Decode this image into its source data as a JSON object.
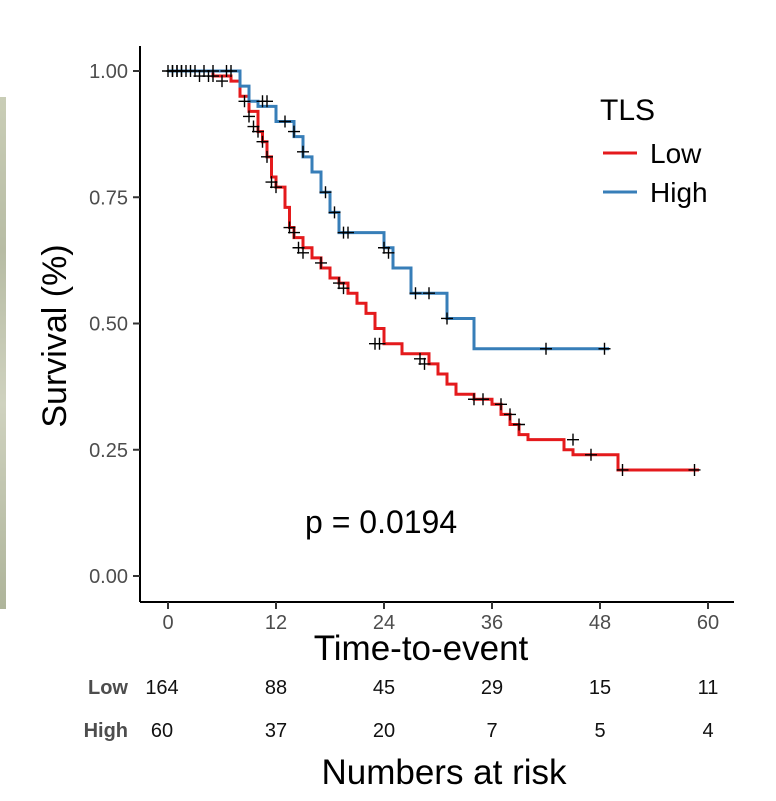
{
  "chart_data": {
    "type": "line",
    "subtype": "kaplan-meier",
    "ylabel": "Survival (%)",
    "xlabel": "Time-to-event",
    "x_ticks": [
      0,
      12,
      24,
      36,
      48,
      60
    ],
    "y_ticks": [
      "0.00",
      "0.25",
      "0.50",
      "0.75",
      "1.00"
    ],
    "y_tick_values": [
      0,
      0.25,
      0.5,
      0.75,
      1.0
    ],
    "xlim": [
      -1,
      62
    ],
    "ylim": [
      -0.05,
      1.05
    ],
    "legend": {
      "title": "TLS",
      "position": "top-right"
    },
    "annotation": "p = 0.0194",
    "series": [
      {
        "name": "Low",
        "color": "#e41a1c",
        "steps": [
          [
            0,
            1.0
          ],
          [
            5,
            0.99
          ],
          [
            7,
            0.98
          ],
          [
            8,
            0.95
          ],
          [
            9,
            0.92
          ],
          [
            10,
            0.88
          ],
          [
            10.5,
            0.86
          ],
          [
            11,
            0.83
          ],
          [
            11.5,
            0.79
          ],
          [
            12,
            0.77
          ],
          [
            13,
            0.73
          ],
          [
            13.5,
            0.69
          ],
          [
            14,
            0.67
          ],
          [
            15,
            0.65
          ],
          [
            16,
            0.63
          ],
          [
            17,
            0.61
          ],
          [
            18,
            0.59
          ],
          [
            19,
            0.58
          ],
          [
            20,
            0.56
          ],
          [
            21,
            0.54
          ],
          [
            22,
            0.52
          ],
          [
            23,
            0.49
          ],
          [
            24,
            0.46
          ],
          [
            26,
            0.44
          ],
          [
            29,
            0.42
          ],
          [
            30,
            0.4
          ],
          [
            31,
            0.38
          ],
          [
            32,
            0.36
          ],
          [
            34,
            0.35
          ],
          [
            36,
            0.34
          ],
          [
            37,
            0.32
          ],
          [
            38,
            0.3
          ],
          [
            39,
            0.28
          ],
          [
            40,
            0.27
          ],
          [
            44,
            0.25
          ],
          [
            45,
            0.24
          ],
          [
            50,
            0.21
          ],
          [
            59,
            0.21
          ]
        ],
        "censors": [
          [
            0,
            1.0
          ],
          [
            0.5,
            1.0
          ],
          [
            1,
            1.0
          ],
          [
            1.5,
            1.0
          ],
          [
            3,
            1.0
          ],
          [
            3.5,
            0.99
          ],
          [
            4.5,
            0.99
          ],
          [
            5,
            0.99
          ],
          [
            6,
            0.98
          ],
          [
            8.5,
            0.94
          ],
          [
            9,
            0.91
          ],
          [
            9.5,
            0.89
          ],
          [
            10,
            0.88
          ],
          [
            10.5,
            0.86
          ],
          [
            11,
            0.83
          ],
          [
            11.5,
            0.78
          ],
          [
            12,
            0.77
          ],
          [
            13.5,
            0.69
          ],
          [
            14,
            0.68
          ],
          [
            14.5,
            0.65
          ],
          [
            15,
            0.64
          ],
          [
            17,
            0.62
          ],
          [
            19,
            0.58
          ],
          [
            19.5,
            0.57
          ],
          [
            23,
            0.46
          ],
          [
            23.5,
            0.46
          ],
          [
            28,
            0.43
          ],
          [
            28.5,
            0.42
          ],
          [
            34,
            0.35
          ],
          [
            35,
            0.35
          ],
          [
            37,
            0.34
          ],
          [
            38,
            0.32
          ],
          [
            39,
            0.3
          ],
          [
            45,
            0.27
          ],
          [
            47,
            0.24
          ],
          [
            50.5,
            0.21
          ],
          [
            58.5,
            0.21
          ]
        ]
      },
      {
        "name": "High",
        "color": "#377eb8",
        "steps": [
          [
            0,
            1.0
          ],
          [
            8,
            0.97
          ],
          [
            9,
            0.94
          ],
          [
            10,
            0.93
          ],
          [
            12,
            0.9
          ],
          [
            14,
            0.87
          ],
          [
            15,
            0.83
          ],
          [
            16,
            0.8
          ],
          [
            17,
            0.76
          ],
          [
            18,
            0.72
          ],
          [
            19,
            0.68
          ],
          [
            24,
            0.65
          ],
          [
            25,
            0.61
          ],
          [
            27,
            0.56
          ],
          [
            31,
            0.51
          ],
          [
            34,
            0.45
          ],
          [
            49,
            0.45
          ]
        ],
        "censors": [
          [
            0.5,
            1.0
          ],
          [
            1,
            1.0
          ],
          [
            1.5,
            1.0
          ],
          [
            2,
            1.0
          ],
          [
            2.5,
            1.0
          ],
          [
            4,
            1.0
          ],
          [
            5,
            1.0
          ],
          [
            6.5,
            1.0
          ],
          [
            7,
            1.0
          ],
          [
            10.5,
            0.94
          ],
          [
            11,
            0.94
          ],
          [
            13,
            0.9
          ],
          [
            14,
            0.88
          ],
          [
            15,
            0.84
          ],
          [
            17.5,
            0.76
          ],
          [
            18.5,
            0.72
          ],
          [
            19.5,
            0.68
          ],
          [
            20,
            0.68
          ],
          [
            24,
            0.65
          ],
          [
            24.5,
            0.64
          ],
          [
            27.5,
            0.56
          ],
          [
            29,
            0.56
          ],
          [
            31,
            0.51
          ],
          [
            42,
            0.45
          ],
          [
            48.5,
            0.45
          ]
        ]
      }
    ],
    "risk_table": {
      "title": "Numbers at risk",
      "times": [
        0,
        12,
        24,
        36,
        48,
        60
      ],
      "rows": [
        {
          "label": "Low",
          "values": [
            "164",
            "88",
            "45",
            "29",
            "15",
            "11"
          ]
        },
        {
          "label": "High",
          "values": [
            "60",
            "37",
            "20",
            "7",
            "5",
            "4"
          ]
        }
      ]
    }
  }
}
